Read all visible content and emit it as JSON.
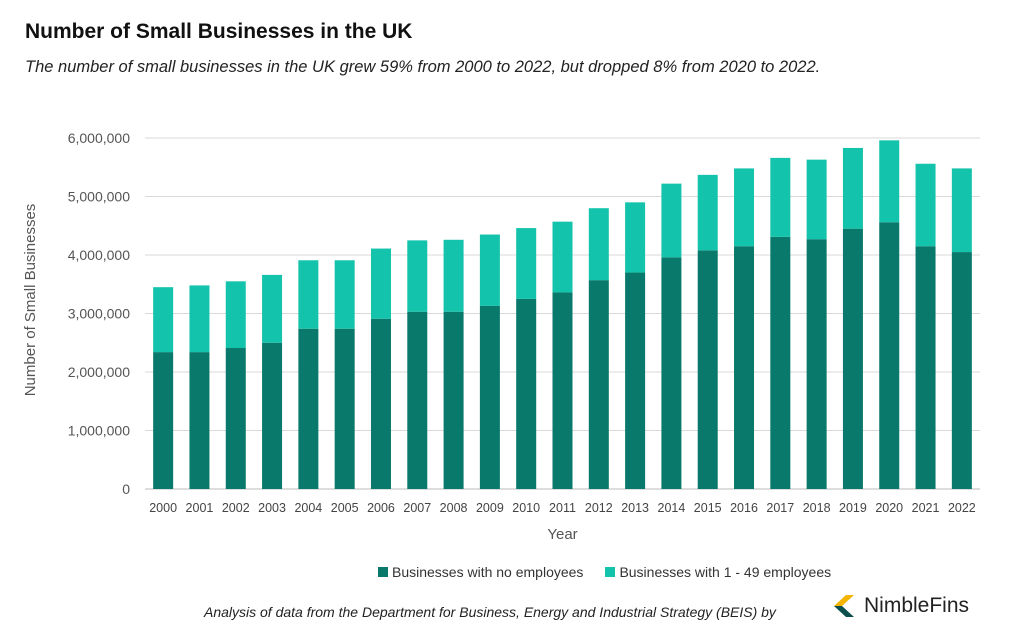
{
  "chart_data": {
    "type": "bar",
    "stacked": true,
    "title": "Number of Small Businesses in the UK",
    "subtitle": "The number of small businesses in the UK grew 59% from 2000 to 2022, but dropped 8% from 2020 to 2022.",
    "xlabel": "Year",
    "ylabel": "Number of Small Businesses",
    "ylim": [
      0,
      6000000
    ],
    "yticks": [
      "0",
      "1,000,000",
      "2,000,000",
      "3,000,000",
      "4,000,000",
      "5,000,000",
      "6,000,000"
    ],
    "grid": true,
    "legend_position": "bottom",
    "categories": [
      "2000",
      "2001",
      "2002",
      "2003",
      "2004",
      "2005",
      "2006",
      "2007",
      "2008",
      "2009",
      "2010",
      "2011",
      "2012",
      "2013",
      "2014",
      "2015",
      "2016",
      "2017",
      "2018",
      "2019",
      "2020",
      "2021",
      "2022"
    ],
    "series": [
      {
        "name": "Businesses with no employees",
        "color": "#08796A",
        "values": [
          2340000,
          2340000,
          2410000,
          2500000,
          2740000,
          2740000,
          2910000,
          3030000,
          3030000,
          3130000,
          3250000,
          3360000,
          3570000,
          3700000,
          3960000,
          4080000,
          4150000,
          4310000,
          4270000,
          4450000,
          4560000,
          4150000,
          4050000
        ]
      },
      {
        "name": "Businesses with 1 - 49 employees",
        "color": "#13C3AB",
        "values": [
          1110000,
          1140000,
          1140000,
          1160000,
          1170000,
          1170000,
          1200000,
          1220000,
          1230000,
          1220000,
          1210000,
          1210000,
          1230000,
          1200000,
          1260000,
          1290000,
          1330000,
          1350000,
          1360000,
          1380000,
          1400000,
          1410000,
          1430000
        ]
      }
    ]
  },
  "footer": "Analysis of data from the Department for Business, Energy and Industrial Strategy (BEIS) by",
  "logo": {
    "text": "NimbleFins",
    "colors": [
      "#F5B400",
      "#0B4F4F"
    ]
  }
}
